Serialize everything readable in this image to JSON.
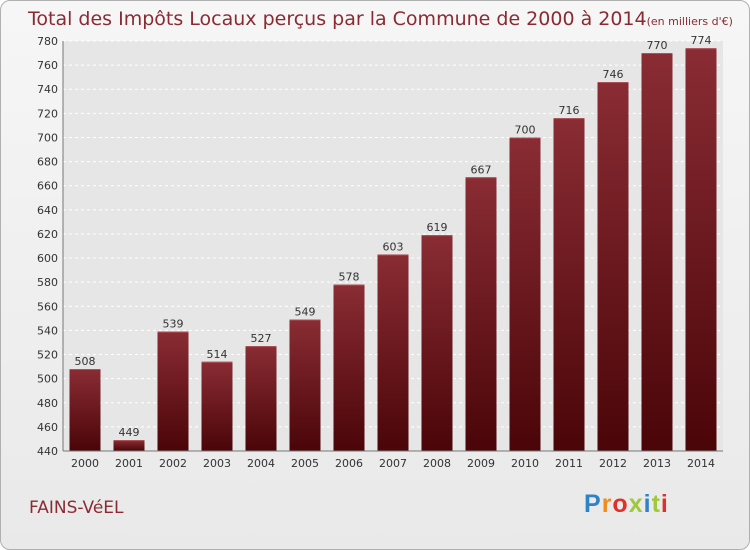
{
  "page": {
    "title": "Total des Impôts Locaux perçus par la Commune de 2000 à 2014",
    "title_unit": "(en milliers d'€)",
    "commune": "FAINS-VéEL",
    "logo": [
      "P",
      "r",
      "o",
      "x",
      "i",
      "t",
      "i"
    ]
  },
  "colors": {
    "title": "#8a2b34",
    "bar_light": "#8a2c34",
    "bar_dark": "#4a0508",
    "logo": [
      "#2e82c9",
      "#f08c1c",
      "#e1302c",
      "#9fc83c",
      "#2e82c9",
      "#9fc83c",
      "#e1302c"
    ]
  },
  "chart_data": {
    "type": "bar",
    "title": "Total des Impôts Locaux perçus par la Commune de 2000 à 2014",
    "ylabel": "en milliers d'€",
    "xlabel": "",
    "categories": [
      "2000",
      "2001",
      "2002",
      "2003",
      "2004",
      "2005",
      "2006",
      "2007",
      "2008",
      "2009",
      "2010",
      "2011",
      "2012",
      "2013",
      "2014"
    ],
    "values": [
      508,
      449,
      539,
      514,
      527,
      549,
      578,
      603,
      619,
      667,
      700,
      716,
      746,
      770,
      774
    ],
    "ylim": [
      440,
      780
    ],
    "yticks": [
      440,
      460,
      480,
      500,
      520,
      540,
      560,
      580,
      600,
      620,
      640,
      660,
      680,
      700,
      720,
      740,
      760,
      780
    ],
    "grid": true
  }
}
